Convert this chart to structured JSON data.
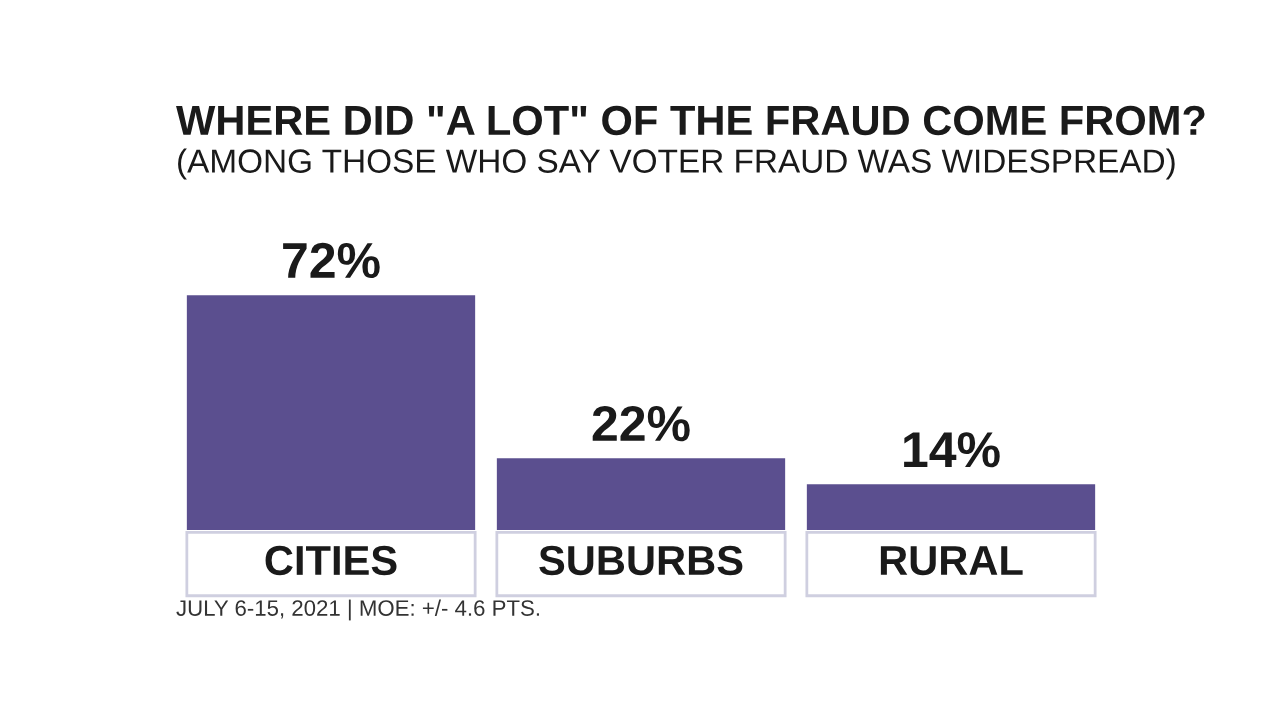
{
  "chart_data": {
    "type": "bar",
    "title": "WHERE DID \"A LOT\" OF THE FRAUD COME FROM?",
    "subtitle": "(AMONG THOSE WHO SAY VOTER FRAUD WAS WIDESPREAD)",
    "categories": [
      "CITIES",
      "SUBURBS",
      "RURAL"
    ],
    "values": [
      72,
      22,
      14
    ],
    "value_labels": [
      "72%",
      "22%",
      "14%"
    ],
    "color": "#5b4f8f",
    "annotations": [
      "JULY 6-15, 2021 | MOE: +/- 4.6 PTS."
    ]
  }
}
